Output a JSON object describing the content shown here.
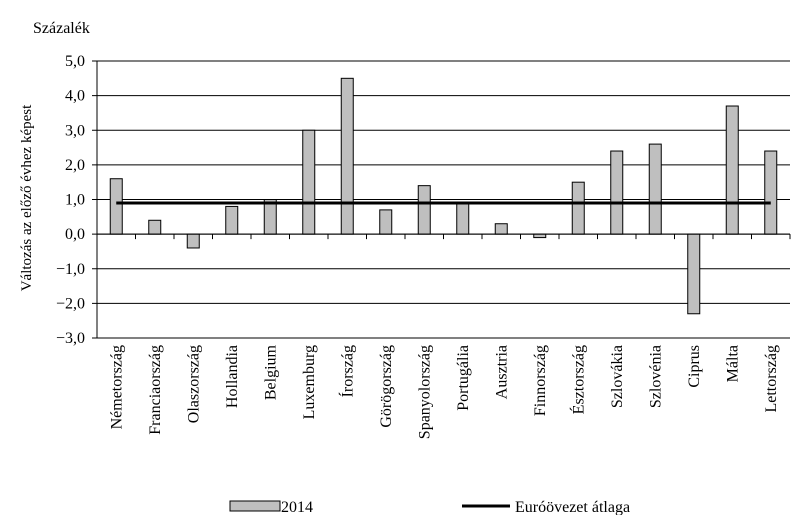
{
  "chart_data": {
    "type": "bar",
    "unit_label": "Százalék",
    "ylabel": "Változás az előző évhez képest",
    "xlabel": "",
    "ylim": [
      -3.0,
      5.0
    ],
    "ytick_step": 1.0,
    "grid": true,
    "legend_position": "bottom",
    "categories": [
      "Németország",
      "Franciaország",
      "Olaszország",
      "Hollandia",
      "Belgium",
      "Luxemburg",
      "Írország",
      "Görögország",
      "Spanyolország",
      "Portugália",
      "Ausztria",
      "Finnország",
      "Észtország",
      "Szlovákia",
      "Szlovénia",
      "Ciprus",
      "Málta",
      "Lettország"
    ],
    "series": [
      {
        "name": "2014",
        "kind": "bar",
        "color": "#bfbfbf",
        "values": [
          1.6,
          0.4,
          -0.4,
          0.8,
          1.0,
          3.0,
          4.5,
          0.7,
          1.4,
          0.9,
          0.3,
          -0.1,
          1.5,
          2.4,
          2.6,
          -2.3,
          3.7,
          2.4
        ]
      },
      {
        "name": "Euróövezet átlaga",
        "kind": "line",
        "color": "#000000",
        "value": 0.9
      }
    ]
  }
}
